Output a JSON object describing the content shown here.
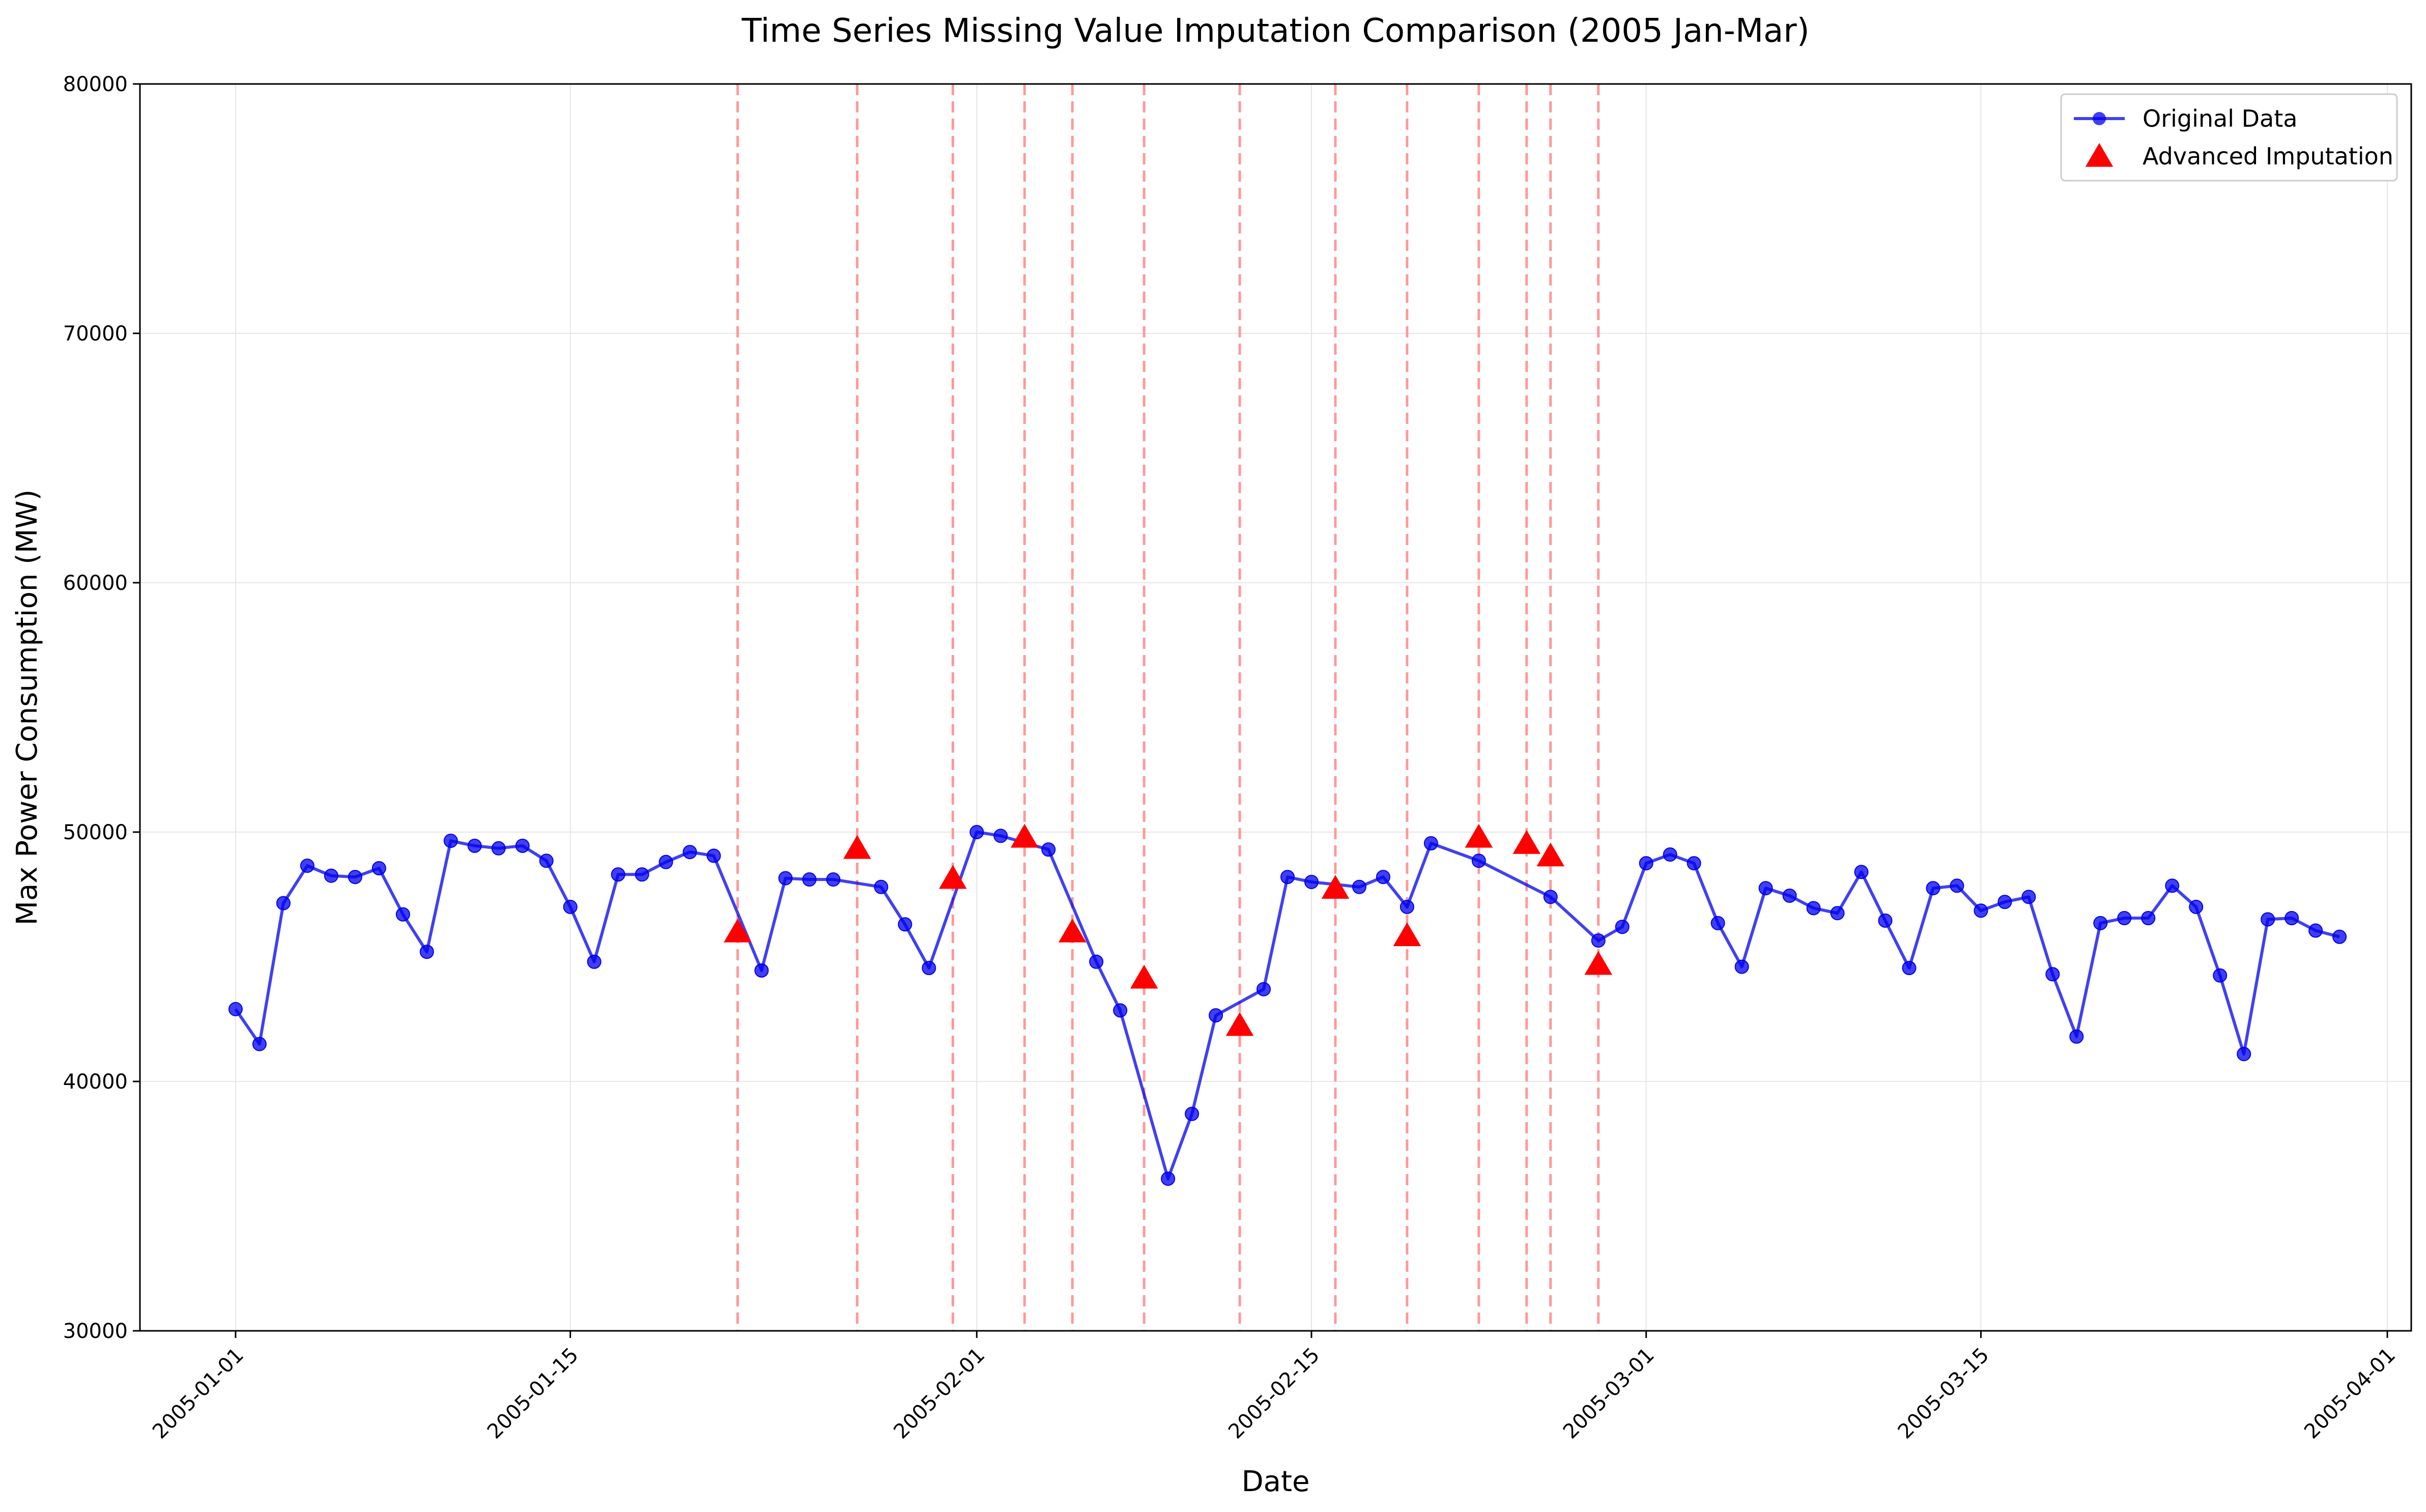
{
  "chart_data": {
    "type": "line",
    "title": "Time Series Missing Value Imputation Comparison (2005 Jan-Mar)",
    "xlabel": "Date",
    "ylabel": "Max Power Consumption (MW)",
    "xlim": [
      "2004-12-28",
      "2005-04-02"
    ],
    "ylim": [
      30000,
      80000
    ],
    "grid": true,
    "legend_position": "top-right",
    "x_ticks": [
      "2005-01-01",
      "2005-01-15",
      "2005-02-01",
      "2005-02-15",
      "2005-03-01",
      "2005-03-15",
      "2005-04-01"
    ],
    "y_ticks": [
      30000,
      40000,
      50000,
      60000,
      70000,
      80000
    ],
    "series": [
      {
        "name": "Original Data",
        "color": "#0000ee",
        "marker": "circle",
        "points": [
          [
            "2005-01-01",
            42900
          ],
          [
            "2005-01-02",
            41500
          ],
          [
            "2005-01-03",
            47150
          ],
          [
            "2005-01-04",
            48650
          ],
          [
            "2005-01-05",
            48250
          ],
          [
            "2005-01-06",
            48200
          ],
          [
            "2005-01-07",
            48550
          ],
          [
            "2005-01-08",
            46700
          ],
          [
            "2005-01-09",
            45200
          ],
          [
            "2005-01-10",
            49650
          ],
          [
            "2005-01-11",
            49450
          ],
          [
            "2005-01-12",
            49350
          ],
          [
            "2005-01-13",
            49450
          ],
          [
            "2005-01-14",
            48850
          ],
          [
            "2005-01-15",
            47000
          ],
          [
            "2005-01-16",
            44800
          ],
          [
            "2005-01-17",
            48300
          ],
          [
            "2005-01-18",
            48300
          ],
          [
            "2005-01-19",
            48800
          ],
          [
            "2005-01-20",
            49200
          ],
          [
            "2005-01-21",
            49050
          ],
          [
            "2005-01-23",
            44450
          ],
          [
            "2005-01-24",
            48150
          ],
          [
            "2005-01-25",
            48100
          ],
          [
            "2005-01-26",
            48100
          ],
          [
            "2005-01-28",
            47800
          ],
          [
            "2005-01-29",
            46300
          ],
          [
            "2005-01-30",
            44550
          ],
          [
            "2005-02-01",
            50000
          ],
          [
            "2005-02-02",
            49850
          ],
          [
            "2005-02-04",
            49300
          ],
          [
            "2005-02-06",
            44800
          ],
          [
            "2005-02-07",
            42850
          ],
          [
            "2005-02-09",
            36100
          ],
          [
            "2005-02-10",
            38700
          ],
          [
            "2005-02-11",
            42650
          ],
          [
            "2005-02-13",
            43700
          ],
          [
            "2005-02-14",
            48200
          ],
          [
            "2005-02-15",
            48000
          ],
          [
            "2005-02-17",
            47800
          ],
          [
            "2005-02-18",
            48200
          ],
          [
            "2005-02-19",
            47000
          ],
          [
            "2005-02-20",
            49550
          ],
          [
            "2005-02-22",
            48850
          ],
          [
            "2005-02-25",
            47400
          ],
          [
            "2005-02-27",
            45650
          ],
          [
            "2005-02-28",
            46200
          ],
          [
            "2005-03-01",
            48750
          ],
          [
            "2005-03-02",
            49100
          ],
          [
            "2005-03-03",
            48750
          ],
          [
            "2005-03-04",
            46350
          ],
          [
            "2005-03-05",
            44600
          ],
          [
            "2005-03-06",
            47750
          ],
          [
            "2005-03-07",
            47450
          ],
          [
            "2005-03-08",
            46950
          ],
          [
            "2005-03-09",
            46750
          ],
          [
            "2005-03-10",
            48400
          ],
          [
            "2005-03-11",
            46450
          ],
          [
            "2005-03-12",
            44550
          ],
          [
            "2005-03-13",
            47750
          ],
          [
            "2005-03-14",
            47850
          ],
          [
            "2005-03-15",
            46850
          ],
          [
            "2005-03-16",
            47200
          ],
          [
            "2005-03-17",
            47400
          ],
          [
            "2005-03-18",
            44300
          ],
          [
            "2005-03-19",
            41800
          ],
          [
            "2005-03-20",
            46350
          ],
          [
            "2005-03-21",
            46550
          ],
          [
            "2005-03-22",
            46550
          ],
          [
            "2005-03-23",
            47850
          ],
          [
            "2005-03-24",
            47000
          ],
          [
            "2005-03-25",
            44250
          ],
          [
            "2005-03-26",
            41100
          ],
          [
            "2005-03-27",
            46500
          ],
          [
            "2005-03-28",
            46550
          ],
          [
            "2005-03-29",
            46050
          ],
          [
            "2005-03-30",
            45800
          ]
        ]
      },
      {
        "name": "Advanced Imputation",
        "color": "#ff0000",
        "marker": "triangle",
        "points": [
          [
            "2005-01-22",
            46000
          ],
          [
            "2005-01-27",
            49350
          ],
          [
            "2005-01-31",
            48150
          ],
          [
            "2005-02-03",
            49800
          ],
          [
            "2005-02-05",
            46000
          ],
          [
            "2005-02-08",
            44150
          ],
          [
            "2005-02-12",
            42250
          ],
          [
            "2005-02-16",
            47750
          ],
          [
            "2005-02-19",
            45850
          ],
          [
            "2005-02-22",
            49800
          ],
          [
            "2005-02-24",
            49550
          ],
          [
            "2005-02-25",
            49050
          ],
          [
            "2005-02-27",
            44700
          ]
        ]
      }
    ],
    "missing_date_markers": [
      "2005-01-22",
      "2005-01-27",
      "2005-01-31",
      "2005-02-03",
      "2005-02-05",
      "2005-02-08",
      "2005-02-12",
      "2005-02-16",
      "2005-02-19",
      "2005-02-22",
      "2005-02-24",
      "2005-02-25",
      "2005-02-27"
    ],
    "colors": {
      "original": "#0000ee",
      "imputed": "#ff0000",
      "missing_line": "#ff9999",
      "grid": "#e6e6e6"
    }
  }
}
